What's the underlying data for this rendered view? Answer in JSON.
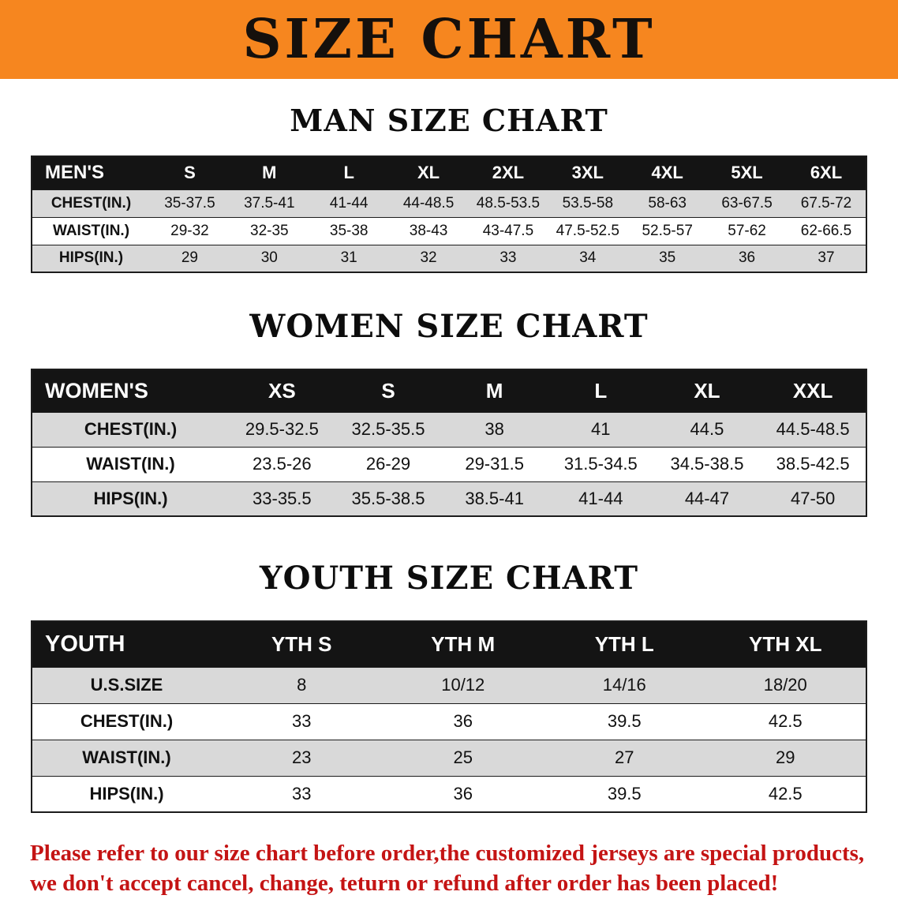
{
  "banner": {
    "title": "SIZE CHART",
    "bg_color": "#f6861f"
  },
  "men": {
    "section_title": "MAN SIZE CHART",
    "header": [
      "MEN'S",
      "S",
      "M",
      "L",
      "XL",
      "2XL",
      "3XL",
      "4XL",
      "5XL",
      "6XL"
    ],
    "rows": [
      [
        "CHEST(IN.)",
        "35-37.5",
        "37.5-41",
        "41-44",
        "44-48.5",
        "48.5-53.5",
        "53.5-58",
        "58-63",
        "63-67.5",
        "67.5-72"
      ],
      [
        "WAIST(IN.)",
        "29-32",
        "32-35",
        "35-38",
        "38-43",
        "43-47.5",
        "47.5-52.5",
        "52.5-57",
        "57-62",
        "62-66.5"
      ],
      [
        "HIPS(IN.)",
        "29",
        "30",
        "31",
        "32",
        "33",
        "34",
        "35",
        "36",
        "37"
      ]
    ]
  },
  "women": {
    "section_title": "WOMEN SIZE CHART",
    "header": [
      "WOMEN'S",
      "XS",
      "S",
      "M",
      "L",
      "XL",
      "XXL"
    ],
    "rows": [
      [
        "CHEST(IN.)",
        "29.5-32.5",
        "32.5-35.5",
        "38",
        "41",
        "44.5",
        "44.5-48.5"
      ],
      [
        "WAIST(IN.)",
        "23.5-26",
        "26-29",
        "29-31.5",
        "31.5-34.5",
        "34.5-38.5",
        "38.5-42.5"
      ],
      [
        "HIPS(IN.)",
        "33-35.5",
        "35.5-38.5",
        "38.5-41",
        "41-44",
        "44-47",
        "47-50"
      ]
    ]
  },
  "youth": {
    "section_title": "YOUTH SIZE CHART",
    "header": [
      "YOUTH",
      "YTH S",
      "YTH M",
      "YTH L",
      "YTH XL"
    ],
    "rows": [
      [
        "U.S.SIZE",
        "8",
        "10/12",
        "14/16",
        "18/20"
      ],
      [
        "CHEST(IN.)",
        "33",
        "36",
        "39.5",
        "42.5"
      ],
      [
        "WAIST(IN.)",
        "23",
        "25",
        "27",
        "29"
      ],
      [
        "HIPS(IN.)",
        "33",
        "36",
        "39.5",
        "42.5"
      ]
    ]
  },
  "footer": {
    "line1": "Please refer to our size chart before order,the customized jerseys are special products,",
    "line2": "we don't accept cancel, change, teturn or refund after order has been placed!",
    "text_color": "#c41414"
  }
}
